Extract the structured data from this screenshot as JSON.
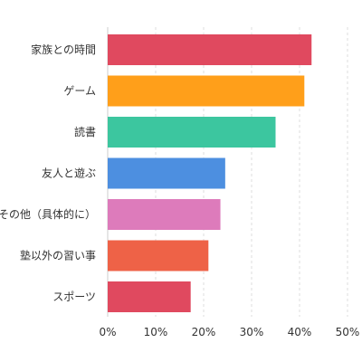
{
  "chart_data": {
    "type": "bar",
    "orientation": "horizontal",
    "categories": [
      "家族との時間",
      "ゲーム",
      "読書",
      "友人と遊ぶ",
      "その他（具体的に）",
      "塾以外の習い事",
      "スポーツ"
    ],
    "values": [
      42.5,
      41.0,
      35.0,
      24.5,
      23.5,
      21.0,
      17.3
    ],
    "colors": [
      "#e0495f",
      "#ff9f1a",
      "#3cc69f",
      "#4d8fe0",
      "#dd7bbb",
      "#ee6247",
      "#e0495f"
    ],
    "xlim": [
      0,
      50
    ],
    "xticks": [
      0,
      10,
      20,
      30,
      40,
      50
    ],
    "xtick_labels": [
      "0%",
      "10%",
      "20%",
      "30%",
      "40%",
      "50%"
    ],
    "title": "",
    "xlabel": "",
    "ylabel": "",
    "grid": "vertical dashed",
    "legend": "none"
  }
}
